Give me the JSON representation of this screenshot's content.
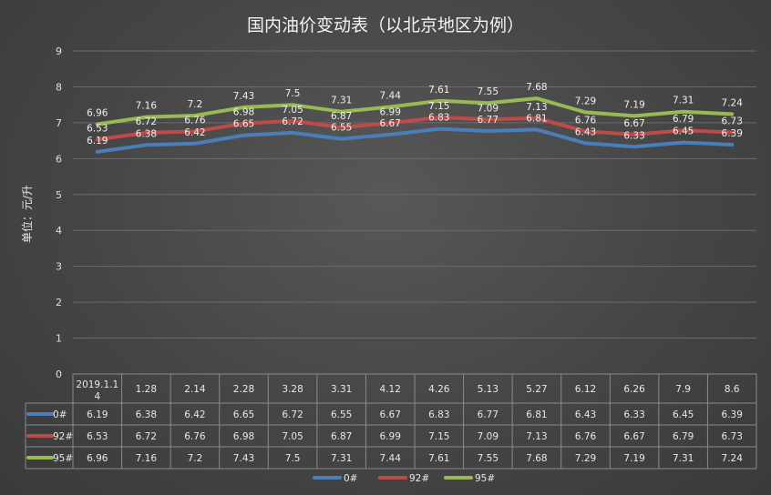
{
  "chart_data": {
    "type": "line",
    "title": "国内油价变动表（以北京地区为例）",
    "ylabel": "单位：元/升",
    "ylim": [
      0,
      9
    ],
    "yticks": [
      "0",
      "1",
      "2",
      "3",
      "4",
      "5",
      "6",
      "7",
      "8",
      "9"
    ],
    "grid": true,
    "legend": "bottom",
    "data_table": true,
    "categories": [
      "2019.1.14",
      "1.28",
      "2.14",
      "2.28",
      "3.28",
      "3.31",
      "4.12",
      "4.26",
      "5.13",
      "5.27",
      "6.12",
      "6.26",
      "7.9",
      "8.6"
    ],
    "series": [
      {
        "name": "0#",
        "color": "#4a7ebb",
        "values": [
          6.19,
          6.38,
          6.42,
          6.65,
          6.72,
          6.55,
          6.67,
          6.83,
          6.77,
          6.81,
          6.43,
          6.33,
          6.45,
          6.39
        ]
      },
      {
        "name": "92#",
        "color": "#be4b48",
        "values": [
          6.53,
          6.72,
          6.76,
          6.98,
          7.05,
          6.87,
          6.99,
          7.15,
          7.09,
          7.13,
          6.76,
          6.67,
          6.79,
          6.73
        ]
      },
      {
        "name": "95#",
        "color": "#98b954",
        "values": [
          6.96,
          7.16,
          7.2,
          7.43,
          7.5,
          7.31,
          7.44,
          7.61,
          7.55,
          7.68,
          7.29,
          7.19,
          7.31,
          7.24
        ]
      }
    ]
  }
}
